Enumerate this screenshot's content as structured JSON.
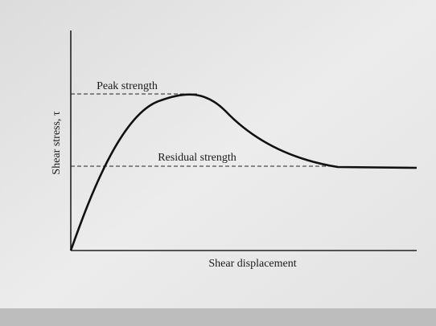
{
  "axes": {
    "y_label": "Shear stress, τ",
    "x_label": "Shear displacement"
  },
  "annotations": {
    "peak": "Peak strength",
    "residual": "Residual strength"
  }
}
